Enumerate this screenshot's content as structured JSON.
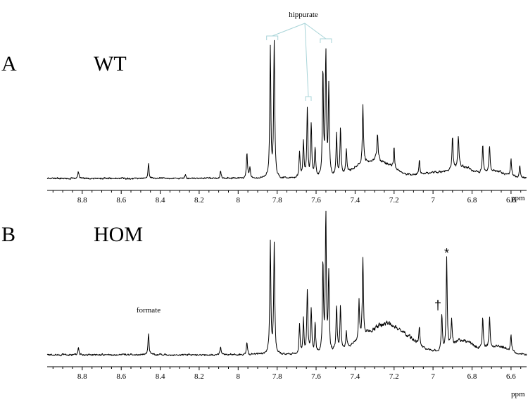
{
  "chart_data": [
    {
      "type": "line",
      "panel_letter": "A",
      "panel_label": "WT",
      "xlabel": "ppm",
      "x_reversed": true,
      "xlim": [
        8.98,
        6.52
      ],
      "ylim": [
        0,
        1
      ],
      "x_ticks": [
        8.8,
        8.6,
        8.4,
        8.2,
        8,
        7.8,
        7.6,
        7.4,
        7.2,
        7,
        6.8,
        6.6
      ],
      "x_tick_labels": [
        "8.8",
        "8.6",
        "8.4",
        "8.2",
        "8",
        "7.8",
        "7.6",
        "7.4",
        "7.2",
        "7",
        "6.8",
        "6.6"
      ],
      "grid": false,
      "peaks": [
        {
          "ppm": 8.82,
          "height": 0.05
        },
        {
          "ppm": 8.46,
          "height": 0.1
        },
        {
          "ppm": 8.27,
          "height": 0.035
        },
        {
          "ppm": 8.09,
          "height": 0.05
        },
        {
          "ppm": 7.955,
          "height": 0.17
        },
        {
          "ppm": 7.94,
          "height": 0.08
        },
        {
          "ppm": 7.835,
          "height": 0.93
        },
        {
          "ppm": 7.815,
          "height": 0.96
        },
        {
          "ppm": 7.685,
          "height": 0.19
        },
        {
          "ppm": 7.665,
          "height": 0.26
        },
        {
          "ppm": 7.645,
          "height": 0.47
        },
        {
          "ppm": 7.625,
          "height": 0.38
        },
        {
          "ppm": 7.605,
          "height": 0.2
        },
        {
          "ppm": 7.565,
          "height": 0.73
        },
        {
          "ppm": 7.55,
          "height": 0.9
        },
        {
          "ppm": 7.535,
          "height": 0.62
        },
        {
          "ppm": 7.495,
          "height": 0.28
        },
        {
          "ppm": 7.475,
          "height": 0.32
        },
        {
          "ppm": 7.445,
          "height": 0.15
        },
        {
          "ppm": 7.36,
          "height": 0.4
        },
        {
          "ppm": 7.285,
          "height": 0.2
        },
        {
          "ppm": 7.2,
          "height": 0.16
        },
        {
          "ppm": 7.07,
          "height": 0.11
        },
        {
          "ppm": 6.9,
          "height": 0.22
        },
        {
          "ppm": 6.87,
          "height": 0.22
        },
        {
          "ppm": 6.745,
          "height": 0.19
        },
        {
          "ppm": 6.71,
          "height": 0.19
        },
        {
          "ppm": 6.6,
          "height": 0.12
        },
        {
          "ppm": 6.555,
          "height": 0.08
        }
      ],
      "humps": [
        {
          "ppm": 7.3,
          "width": 0.13,
          "height": 0.13
        },
        {
          "ppm": 7.0,
          "width": 0.09,
          "height": 0.04
        },
        {
          "ppm": 6.85,
          "width": 0.08,
          "height": 0.08
        },
        {
          "ppm": 6.68,
          "width": 0.08,
          "height": 0.05
        }
      ],
      "annotations": [
        {
          "text": "hippurate",
          "ppm": 7.665,
          "height": 1.11,
          "targets": [
            7.825,
            7.64,
            7.55
          ]
        }
      ]
    },
    {
      "type": "line",
      "panel_letter": "B",
      "panel_label": "HOM",
      "xlabel": "ppm",
      "x_reversed": true,
      "xlim": [
        8.98,
        6.52
      ],
      "ylim": [
        0,
        1
      ],
      "x_ticks": [
        8.8,
        8.6,
        8.4,
        8.2,
        8,
        7.8,
        7.6,
        7.4,
        7.2,
        7,
        6.8,
        6.6
      ],
      "x_tick_labels": [
        "8.8",
        "8.6",
        "8.4",
        "8.2",
        "8",
        "7.8",
        "7.6",
        "7.4",
        "7.2",
        "7",
        "6.8",
        "6.6"
      ],
      "grid": false,
      "peaks": [
        {
          "ppm": 8.82,
          "height": 0.05
        },
        {
          "ppm": 8.46,
          "height": 0.15
        },
        {
          "ppm": 8.09,
          "height": 0.05
        },
        {
          "ppm": 7.955,
          "height": 0.09
        },
        {
          "ppm": 7.835,
          "height": 0.79
        },
        {
          "ppm": 7.815,
          "height": 0.79
        },
        {
          "ppm": 7.685,
          "height": 0.2
        },
        {
          "ppm": 7.665,
          "height": 0.26
        },
        {
          "ppm": 7.645,
          "height": 0.46
        },
        {
          "ppm": 7.625,
          "height": 0.34
        },
        {
          "ppm": 7.605,
          "height": 0.22
        },
        {
          "ppm": 7.565,
          "height": 0.62
        },
        {
          "ppm": 7.55,
          "height": 0.98
        },
        {
          "ppm": 7.535,
          "height": 0.55
        },
        {
          "ppm": 7.495,
          "height": 0.32
        },
        {
          "ppm": 7.475,
          "height": 0.3
        },
        {
          "ppm": 7.445,
          "height": 0.12
        },
        {
          "ppm": 7.38,
          "height": 0.28
        },
        {
          "ppm": 7.36,
          "height": 0.56
        },
        {
          "ppm": 7.07,
          "height": 0.12
        },
        {
          "ppm": 6.955,
          "height": 0.25
        },
        {
          "ppm": 6.93,
          "height": 0.63
        },
        {
          "ppm": 6.905,
          "height": 0.18
        },
        {
          "ppm": 6.745,
          "height": 0.23
        },
        {
          "ppm": 6.71,
          "height": 0.2
        },
        {
          "ppm": 6.6,
          "height": 0.12
        }
      ],
      "humps": [
        {
          "ppm": 7.24,
          "width": 0.16,
          "height": 0.22
        },
        {
          "ppm": 6.85,
          "width": 0.08,
          "height": 0.1
        },
        {
          "ppm": 6.67,
          "width": 0.08,
          "height": 0.06
        }
      ],
      "annotations": [
        {
          "text": "formate",
          "ppm": 8.46,
          "height": 0.3
        },
        {
          "text": "†",
          "ppm": 6.975,
          "height": 0.32
        },
        {
          "text": "*",
          "ppm": 6.93,
          "height": 0.69
        }
      ]
    }
  ]
}
